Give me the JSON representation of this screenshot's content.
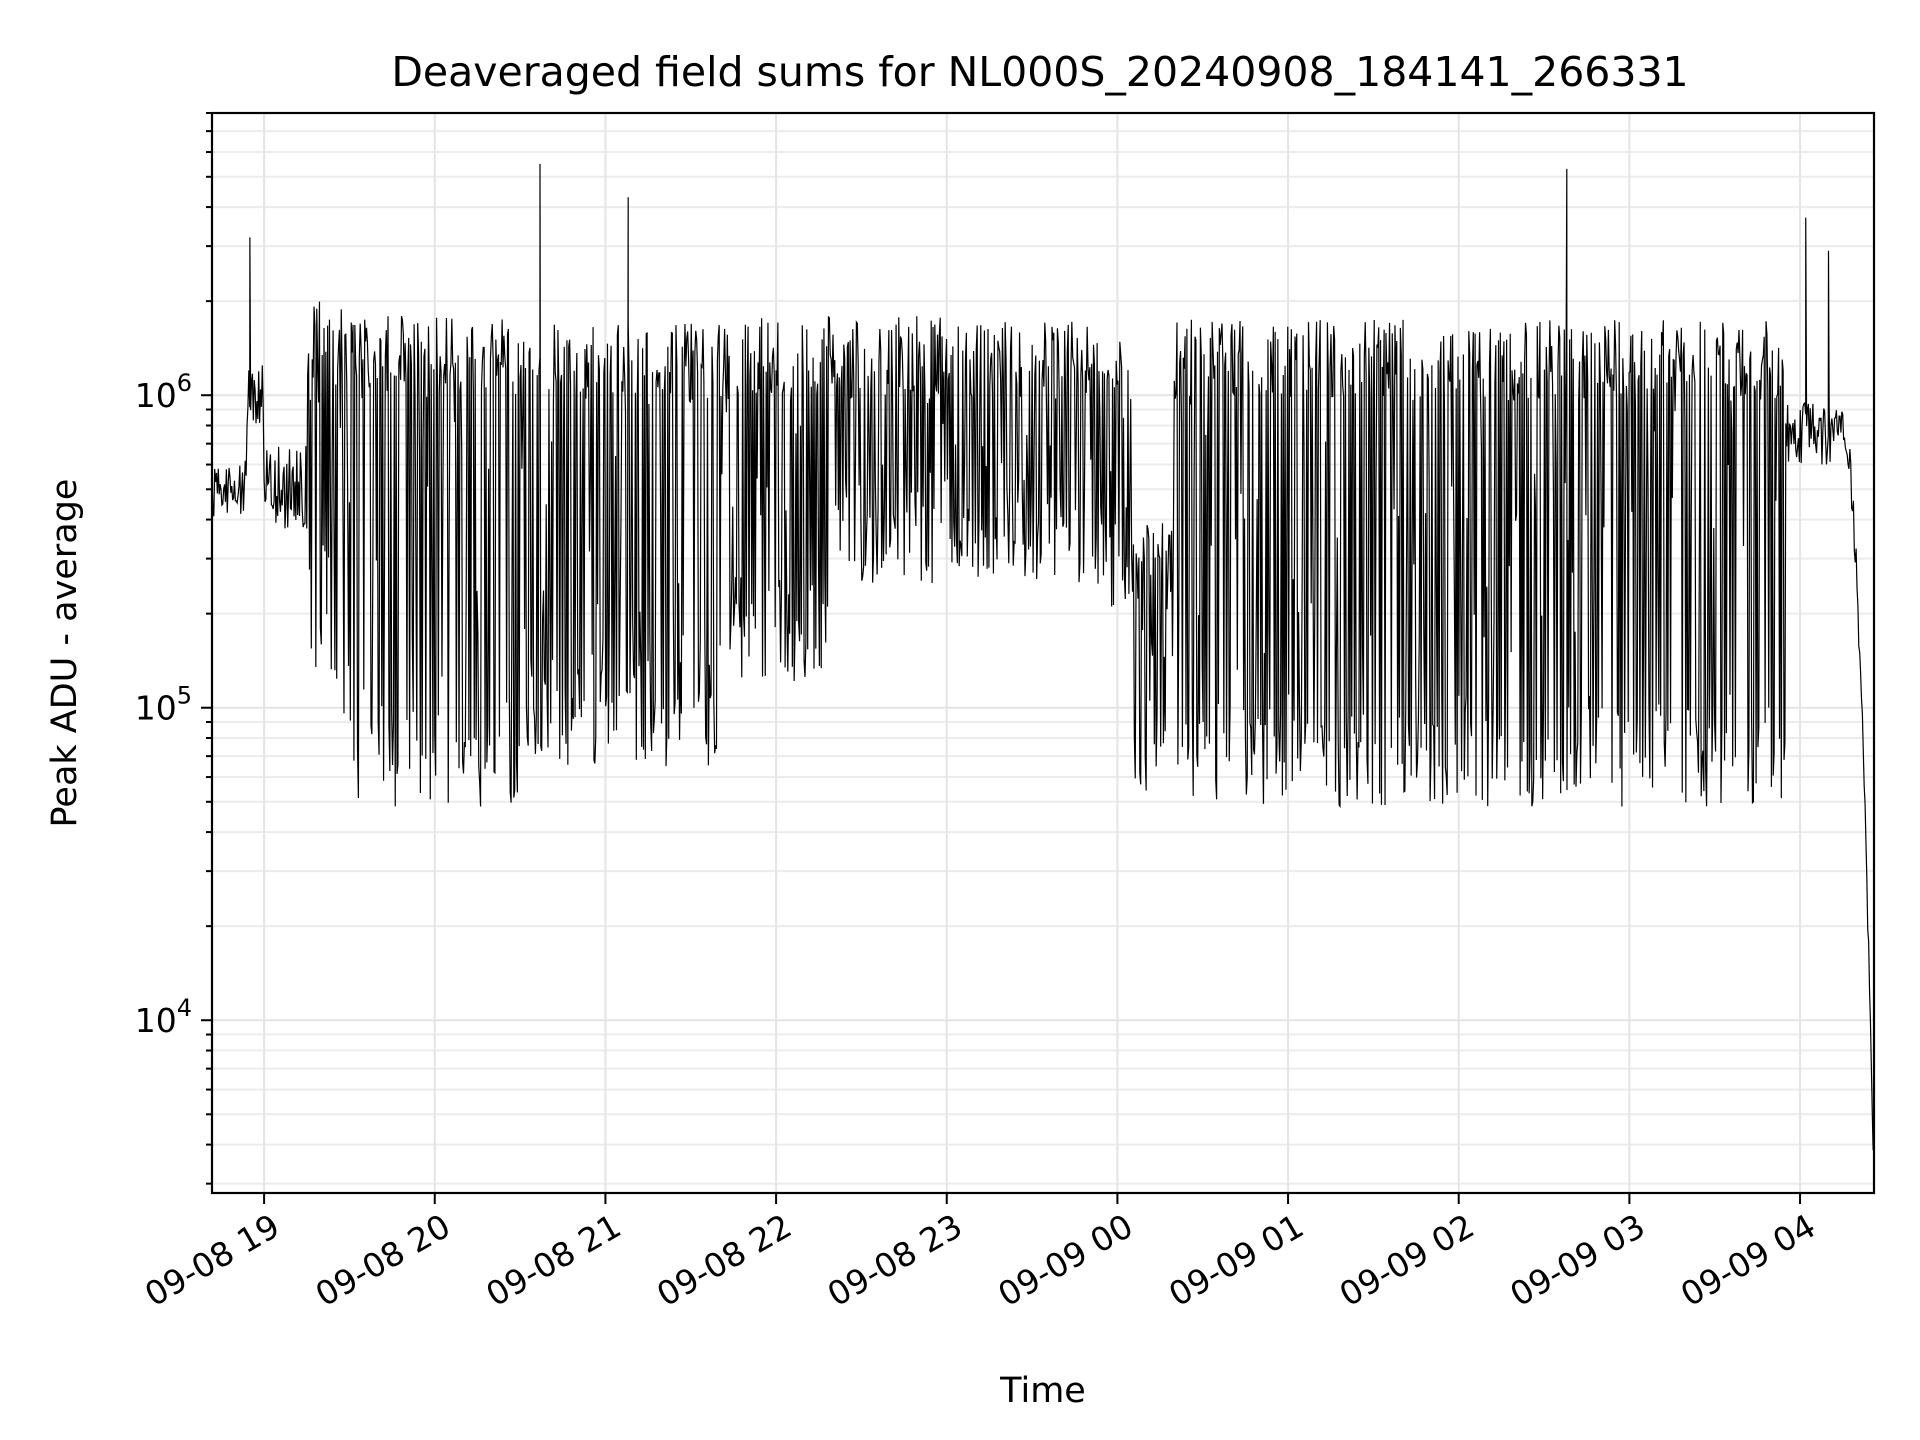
{
  "chart_data": {
    "type": "line",
    "title": "Deaveraged field sums for NL000S_20240908_184141_266331",
    "xlabel": "Time",
    "ylabel": "Peak ADU - average",
    "x_axis": "datetime",
    "x_range": [
      "2024-09-08T18:41:41",
      "2024-09-09T04:26:00"
    ],
    "x_ticks": [
      "09-08 19",
      "09-08 20",
      "09-08 21",
      "09-08 22",
      "09-08 23",
      "09-09 00",
      "09-09 01",
      "09-09 02",
      "09-09 03",
      "09-09 04"
    ],
    "y_scale": "log",
    "ylim": [
      2800,
      8000000
    ],
    "y_ticks": [
      {
        "value": 10000,
        "base": "10",
        "exp": "4"
      },
      {
        "value": 100000,
        "base": "10",
        "exp": "5"
      },
      {
        "value": 1000000,
        "base": "10",
        "exp": "6"
      }
    ],
    "grid": true,
    "line_color": "#000000",
    "series": [
      {
        "spikes": [
          {
            "x": "2024-09-08T18:55:00",
            "y": 3200000
          },
          {
            "x": "2024-09-08T20:37:00",
            "y": 5500000
          },
          {
            "x": "2024-09-08T21:08:00",
            "y": 4300000
          },
          {
            "x": "2024-09-09T02:38:00",
            "y": 5300000
          },
          {
            "x": "2024-09-09T04:02:00",
            "y": 3700000
          },
          {
            "x": "2024-09-09T04:10:00",
            "y": 2900000
          }
        ],
        "segments": [
          {
            "x0": "2024-09-08T18:41:41",
            "x1": "2024-09-08T18:54:00",
            "mode": "band",
            "low": 400000,
            "high": 620000
          },
          {
            "x0": "2024-09-08T18:54:00",
            "x1": "2024-09-08T19:00:00",
            "mode": "band",
            "low": 800000,
            "high": 1300000
          },
          {
            "x0": "2024-09-08T19:00:00",
            "x1": "2024-09-08T19:15:00",
            "mode": "band",
            "low": 350000,
            "high": 700000
          },
          {
            "x0": "2024-09-08T19:15:00",
            "x1": "2024-09-08T19:30:00",
            "mode": "osc",
            "low": 90000,
            "high": 2000000
          },
          {
            "x0": "2024-09-08T19:30:00",
            "x1": "2024-09-08T20:30:00",
            "mode": "osc",
            "low": 48000,
            "high": 1800000
          },
          {
            "x0": "2024-09-08T20:30:00",
            "x1": "2024-09-08T21:40:00",
            "mode": "osc",
            "low": 65000,
            "high": 1700000
          },
          {
            "x0": "2024-09-08T21:40:00",
            "x1": "2024-09-08T22:20:00",
            "mode": "osc",
            "low": 120000,
            "high": 1800000
          },
          {
            "x0": "2024-09-08T22:20:00",
            "x1": "2024-09-08T23:50:00",
            "mode": "osc",
            "low": 250000,
            "high": 1800000
          },
          {
            "x0": "2024-09-08T23:50:00",
            "x1": "2024-09-09T00:05:00",
            "mode": "osc",
            "low": 200000,
            "high": 1500000
          },
          {
            "x0": "2024-09-09T00:05:00",
            "x1": "2024-09-09T00:20:00",
            "mode": "osc",
            "low": 50000,
            "high": 400000
          },
          {
            "x0": "2024-09-09T00:20:00",
            "x1": "2024-09-09T03:55:00",
            "mode": "osc",
            "low": 48000,
            "high": 1750000
          },
          {
            "x0": "2024-09-09T03:55:00",
            "x1": "2024-09-09T04:15:00",
            "mode": "band",
            "low": 600000,
            "high": 950000
          },
          {
            "x0": "2024-09-09T04:15:00",
            "x1": "2024-09-09T04:26:00",
            "mode": "decay",
            "low": 3000,
            "high": 800000
          }
        ]
      }
    ]
  }
}
